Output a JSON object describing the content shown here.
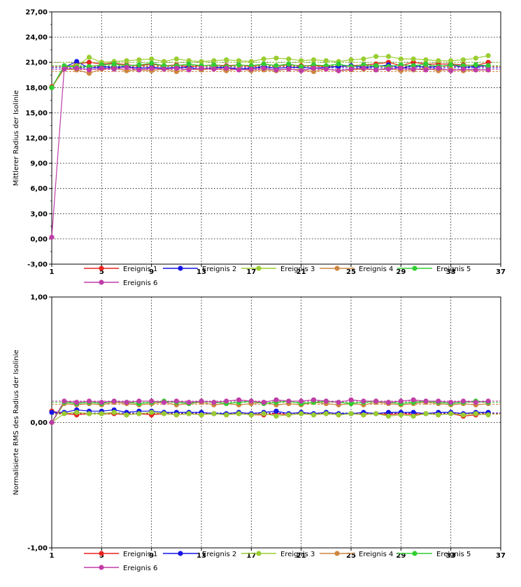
{
  "chart_data": [
    {
      "type": "line",
      "title": "",
      "xlabel": "",
      "ylabel": "Mittlerer Radius der Isolinie",
      "xlim": [
        1,
        37
      ],
      "ylim": [
        -3,
        27
      ],
      "x_ticks": [
        "1",
        "5",
        "9",
        "13",
        "17",
        "21",
        "25",
        "29",
        "33",
        "37"
      ],
      "y_ticks": [
        "-3,00",
        "0,00",
        "3,00",
        "6,00",
        "9,00",
        "12,00",
        "15,00",
        "18,00",
        "21,00",
        "24,00",
        "27,00"
      ],
      "grid": true,
      "legend_position": "bottom",
      "x": [
        1,
        2,
        3,
        4,
        5,
        6,
        7,
        8,
        9,
        10,
        11,
        12,
        13,
        14,
        15,
        16,
        17,
        18,
        19,
        20,
        21,
        22,
        23,
        24,
        25,
        26,
        27,
        28,
        29,
        30,
        31,
        32,
        33,
        34,
        35,
        36
      ],
      "series": [
        {
          "name": "Ereignis 1",
          "color": "#e8231e",
          "mean": 20.5,
          "values": [
            18.1,
            20.3,
            20.8,
            21.0,
            20.8,
            20.9,
            20.7,
            20.6,
            20.8,
            20.6,
            20.7,
            20.5,
            20.6,
            20.7,
            20.6,
            20.7,
            20.5,
            20.8,
            20.6,
            20.7,
            20.6,
            20.6,
            20.5,
            20.5,
            20.6,
            20.7,
            20.8,
            21.0,
            20.6,
            21.0,
            20.8,
            20.8,
            20.8,
            20.7,
            20.6,
            21.0
          ]
        },
        {
          "name": "Ereignis 2",
          "color": "#1414e6",
          "mean": 20.35,
          "values": [
            18.0,
            20.4,
            21.1,
            20.3,
            20.5,
            20.4,
            20.5,
            20.3,
            20.4,
            20.3,
            20.4,
            20.4,
            20.1,
            20.4,
            20.4,
            20.2,
            20.3,
            20.5,
            20.3,
            20.4,
            20.4,
            20.3,
            20.4,
            20.5,
            20.6,
            20.4,
            20.5,
            20.7,
            20.3,
            20.6,
            20.4,
            20.5,
            20.7,
            20.4,
            20.5,
            20.6
          ]
        },
        {
          "name": "Ereignis 3",
          "color": "#9acd32",
          "mean": 21.0,
          "values": [
            18.0,
            20.5,
            20.6,
            21.6,
            21.0,
            21.1,
            21.2,
            21.3,
            21.4,
            21.1,
            21.4,
            21.2,
            21.1,
            21.2,
            21.3,
            21.2,
            21.1,
            21.4,
            21.5,
            21.4,
            21.2,
            21.3,
            21.2,
            21.1,
            21.3,
            21.4,
            21.7,
            21.7,
            21.4,
            21.4,
            21.3,
            21.2,
            21.2,
            21.3,
            21.5,
            21.8
          ]
        },
        {
          "name": "Ereignis 4",
          "color": "#cd853f",
          "mean": 19.9,
          "values": [
            18.0,
            20.2,
            20.1,
            19.7,
            20.2,
            20.3,
            20.0,
            20.1,
            20.0,
            20.2,
            19.9,
            20.2,
            20.1,
            20.3,
            20.0,
            20.2,
            20.0,
            20.1,
            20.0,
            20.2,
            20.1,
            19.9,
            20.2,
            20.0,
            20.1,
            20.2,
            20.1,
            20.3,
            20.0,
            20.1,
            20.3,
            20.0,
            20.2,
            20.0,
            20.1,
            20.1
          ]
        },
        {
          "name": "Ereignis 5",
          "color": "#32cd32",
          "mean": 20.6,
          "values": [
            18.0,
            20.6,
            20.4,
            20.5,
            20.7,
            20.8,
            20.6,
            20.7,
            20.9,
            20.6,
            20.6,
            20.8,
            20.6,
            20.7,
            20.5,
            20.7,
            20.6,
            20.8,
            20.6,
            20.8,
            20.5,
            20.7,
            20.6,
            20.8,
            20.5,
            20.7,
            20.6,
            20.5,
            20.7,
            20.6,
            20.8,
            20.5,
            20.7,
            20.6,
            20.7,
            20.6
          ]
        },
        {
          "name": "Ereignis 6",
          "color": "#c03ca8",
          "mean": 20.15,
          "values": [
            0.2,
            20.2,
            20.3,
            20.1,
            20.3,
            20.2,
            20.4,
            20.1,
            20.3,
            20.2,
            20.3,
            20.1,
            20.3,
            20.2,
            20.3,
            20.1,
            20.2,
            20.3,
            20.1,
            20.2,
            20.0,
            20.3,
            20.2,
            20.0,
            20.2,
            20.3,
            20.1,
            20.2,
            20.3,
            20.2,
            20.1,
            20.3,
            20.0,
            20.2,
            20.1,
            20.1
          ]
        }
      ]
    },
    {
      "type": "line",
      "title": "",
      "xlabel": "",
      "ylabel": "Normalisierte RMS des Radius der Isolinie",
      "xlim": [
        1,
        37
      ],
      "ylim": [
        -1,
        1
      ],
      "x_ticks": [
        "1",
        "5",
        "9",
        "13",
        "17",
        "21",
        "25",
        "29",
        "33",
        "37"
      ],
      "y_ticks": [
        "-1,00",
        "0,00",
        "1,00"
      ],
      "grid": true,
      "legend_position": "bottom",
      "x": [
        1,
        2,
        3,
        4,
        5,
        6,
        7,
        8,
        9,
        10,
        11,
        12,
        13,
        14,
        15,
        16,
        17,
        18,
        19,
        20,
        21,
        22,
        23,
        24,
        25,
        26,
        27,
        28,
        29,
        30,
        31,
        32,
        33,
        34,
        35,
        36
      ],
      "series": [
        {
          "name": "Ereignis 1",
          "color": "#e8231e",
          "mean": 0.07,
          "values": [
            0.09,
            0.07,
            0.06,
            0.07,
            0.07,
            0.07,
            0.06,
            0.07,
            0.06,
            0.07,
            0.06,
            0.07,
            0.06,
            0.07,
            0.06,
            0.07,
            0.06,
            0.06,
            0.07,
            0.06,
            0.07,
            0.06,
            0.07,
            0.06,
            0.07,
            0.06,
            0.07,
            0.06,
            0.07,
            0.06,
            0.07,
            0.06,
            0.07,
            0.05,
            0.06,
            0.07
          ]
        },
        {
          "name": "Ereignis 2",
          "color": "#1414e6",
          "mean": 0.075,
          "values": [
            0.08,
            0.08,
            0.1,
            0.09,
            0.09,
            0.1,
            0.08,
            0.09,
            0.09,
            0.08,
            0.08,
            0.08,
            0.08,
            0.07,
            0.07,
            0.08,
            0.07,
            0.08,
            0.09,
            0.07,
            0.08,
            0.07,
            0.08,
            0.07,
            0.07,
            0.08,
            0.07,
            0.08,
            0.08,
            0.08,
            0.07,
            0.08,
            0.08,
            0.07,
            0.08,
            0.08
          ]
        },
        {
          "name": "Ereignis 3",
          "color": "#9acd32",
          "mean": 0.065,
          "values": [
            0.0,
            0.07,
            0.08,
            0.07,
            0.07,
            0.08,
            0.06,
            0.07,
            0.08,
            0.07,
            0.06,
            0.07,
            0.06,
            0.07,
            0.06,
            0.07,
            0.06,
            0.07,
            0.05,
            0.06,
            0.07,
            0.06,
            0.07,
            0.06,
            0.07,
            0.06,
            0.07,
            0.05,
            0.06,
            0.05,
            0.07,
            0.06,
            0.07,
            0.06,
            0.07,
            0.06
          ]
        },
        {
          "name": "Ereignis 4",
          "color": "#cd853f",
          "mean": 0.145,
          "values": [
            0.0,
            0.15,
            0.14,
            0.15,
            0.14,
            0.16,
            0.15,
            0.14,
            0.15,
            0.16,
            0.14,
            0.15,
            0.16,
            0.14,
            0.15,
            0.14,
            0.15,
            0.16,
            0.14,
            0.15,
            0.14,
            0.16,
            0.15,
            0.14,
            0.15,
            0.14,
            0.16,
            0.15,
            0.14,
            0.15,
            0.16,
            0.15,
            0.14,
            0.15,
            0.14,
            0.15
          ]
        },
        {
          "name": "Ereignis 5",
          "color": "#32cd32",
          "mean": 0.16,
          "values": [
            0.0,
            0.16,
            0.15,
            0.16,
            0.15,
            0.17,
            0.16,
            0.15,
            0.16,
            0.17,
            0.16,
            0.15,
            0.17,
            0.16,
            0.15,
            0.16,
            0.17,
            0.15,
            0.16,
            0.17,
            0.15,
            0.16,
            0.17,
            0.16,
            0.15,
            0.16,
            0.17,
            0.16,
            0.15,
            0.16,
            0.17,
            0.16,
            0.15,
            0.16,
            0.17,
            0.16
          ]
        },
        {
          "name": "Ereignis 6",
          "color": "#c03ca8",
          "mean": 0.17,
          "values": [
            0.0,
            0.17,
            0.16,
            0.17,
            0.16,
            0.17,
            0.16,
            0.17,
            0.17,
            0.16,
            0.17,
            0.16,
            0.17,
            0.16,
            0.17,
            0.18,
            0.17,
            0.16,
            0.18,
            0.17,
            0.17,
            0.18,
            0.17,
            0.16,
            0.18,
            0.17,
            0.17,
            0.16,
            0.17,
            0.18,
            0.17,
            0.17,
            0.16,
            0.17,
            0.16,
            0.17
          ]
        }
      ]
    }
  ]
}
